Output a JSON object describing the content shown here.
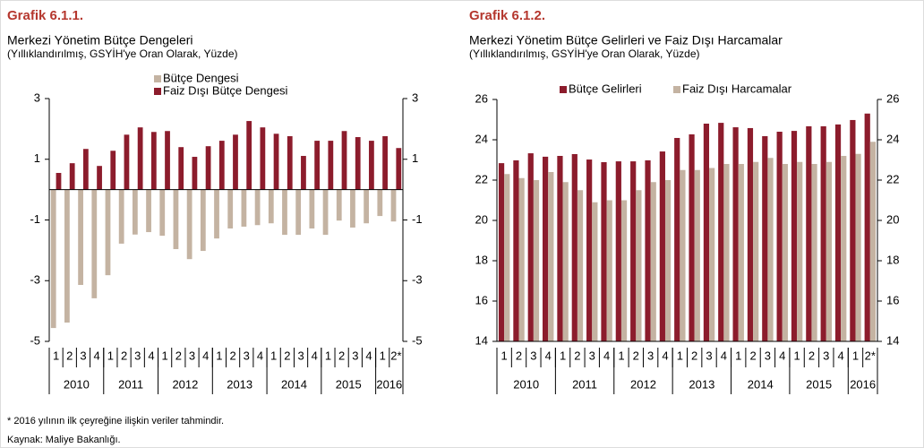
{
  "chart_data": [
    {
      "type": "bar",
      "title": "Grafik 6.1.1.",
      "subtitle": "Merkezi Yönetim Bütçe Dengeleri",
      "note": "(Yıllıklandırılmış, GSYİH'ye Oran Olarak, Yüzde)",
      "categories": [
        "1",
        "2",
        "3",
        "4",
        "1",
        "2",
        "3",
        "4",
        "1",
        "2",
        "3",
        "4",
        "1",
        "2",
        "3",
        "4",
        "1",
        "2",
        "3",
        "4",
        "1",
        "2",
        "3",
        "4",
        "1",
        "2*"
      ],
      "years": [
        "2010",
        "2011",
        "2012",
        "2013",
        "2014",
        "2015",
        "2016"
      ],
      "ylim": [
        -5,
        3
      ],
      "yticks": [
        -5,
        -3,
        -1,
        1,
        3
      ],
      "series": [
        {
          "name": "Bütçe Dengesi",
          "color": "#c4b3a2",
          "values": [
            -4.56,
            -4.38,
            -3.14,
            -3.58,
            -2.82,
            -1.78,
            -1.48,
            -1.4,
            -1.52,
            -1.96,
            -2.29,
            -2.02,
            -1.61,
            -1.28,
            -1.22,
            -1.17,
            -1.11,
            -1.49,
            -1.49,
            -1.28,
            -1.49,
            -1.02,
            -1.25,
            -1.11,
            -0.87,
            -1.05
          ]
        },
        {
          "name": "Faiz Dışı Bütçe Dengesi",
          "color": "#8c1c2c",
          "values": [
            0.55,
            0.87,
            1.34,
            0.78,
            1.28,
            1.81,
            2.05,
            1.9,
            1.93,
            1.4,
            1.08,
            1.43,
            1.61,
            1.81,
            2.26,
            2.05,
            1.84,
            1.76,
            1.11,
            1.61,
            1.61,
            1.93,
            1.73,
            1.61,
            1.76,
            1.37
          ]
        }
      ]
    },
    {
      "type": "bar",
      "title": "Grafik 6.1.2.",
      "subtitle": "Merkezi Yönetim Bütçe Gelirleri ve Faiz Dışı Harcamalar",
      "note": "(Yıllıklandırılmış, GSYİH'ye Oran Olarak, Yüzde)",
      "categories": [
        "1",
        "2",
        "3",
        "4",
        "1",
        "2",
        "3",
        "4",
        "1",
        "2",
        "3",
        "4",
        "1",
        "2",
        "3",
        "4",
        "1",
        "2",
        "3",
        "4",
        "1",
        "2",
        "3",
        "4",
        "1",
        "2*"
      ],
      "years": [
        "2010",
        "2011",
        "2012",
        "2013",
        "2014",
        "2015",
        "2016"
      ],
      "ylim": [
        14,
        26
      ],
      "yticks": [
        14,
        16,
        18,
        20,
        22,
        24,
        26
      ],
      "series": [
        {
          "name": "Bütçe Gelirleri",
          "color": "#8c1c2c",
          "values": [
            22.84,
            22.98,
            23.33,
            23.16,
            23.2,
            23.29,
            23.02,
            22.89,
            22.93,
            22.93,
            22.98,
            23.42,
            24.09,
            24.27,
            24.8,
            24.84,
            24.62,
            24.58,
            24.18,
            24.4,
            24.44,
            24.67,
            24.67,
            24.76,
            24.98,
            25.3
          ]
        },
        {
          "name": "Faiz Dışı Harcamalar",
          "color": "#c4b3a2",
          "values": [
            22.3,
            22.1,
            22.0,
            22.4,
            21.9,
            21.5,
            20.9,
            21.0,
            21.0,
            21.5,
            21.9,
            22.0,
            22.5,
            22.5,
            22.6,
            22.8,
            22.8,
            22.9,
            23.1,
            22.8,
            22.9,
            22.8,
            22.9,
            23.2,
            23.3,
            23.9
          ]
        }
      ]
    }
  ],
  "footnote": "* 2016 yılının ilk çeyreğine ilişkin veriler tahmindir.",
  "source": "Kaynak: Maliye Bakanlığı."
}
